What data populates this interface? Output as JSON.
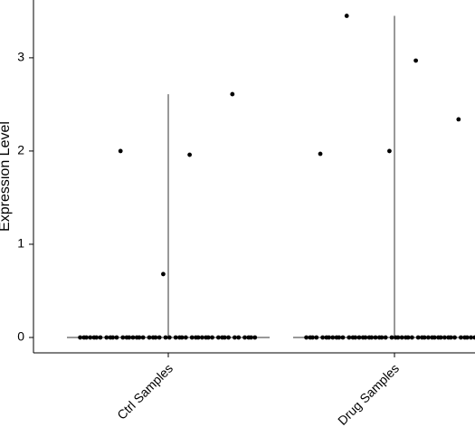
{
  "chart_data": {
    "type": "strip",
    "y_label": "Expression Level",
    "categories": [
      "Ctrl Samples",
      "Drug Samples"
    ],
    "series": [
      {
        "name": "Ctrl Samples",
        "color": "#000000",
        "values": [
          1.96,
          2.0,
          2.61,
          0.68,
          0,
          0,
          0,
          0,
          0,
          0,
          0,
          0,
          0,
          0,
          0,
          0,
          0,
          0,
          0,
          0,
          0,
          0,
          0,
          0,
          0,
          0,
          0,
          0,
          0,
          0,
          0,
          0,
          0,
          0,
          0,
          0,
          0,
          0,
          0,
          0,
          0,
          0,
          0,
          0,
          0,
          0,
          0,
          0,
          0
        ]
      },
      {
        "name": "Drug Samples",
        "color": "#000000",
        "values": [
          2.97,
          3.45,
          2.34,
          2.0,
          1.97,
          0,
          0,
          0,
          0,
          0,
          0,
          0,
          0,
          0,
          0,
          0,
          0,
          0,
          0,
          0,
          0,
          0,
          0,
          0,
          0,
          0,
          0,
          0,
          0,
          0,
          0,
          0,
          0,
          0,
          0,
          0,
          0,
          0,
          0,
          0,
          0,
          0,
          0,
          0,
          0,
          0,
          0,
          0,
          0,
          0,
          0,
          0,
          0,
          0,
          0
        ]
      }
    ],
    "ylim": [
      -0.165,
      3.62
    ],
    "yticks": [
      0,
      1,
      2,
      3
    ]
  }
}
